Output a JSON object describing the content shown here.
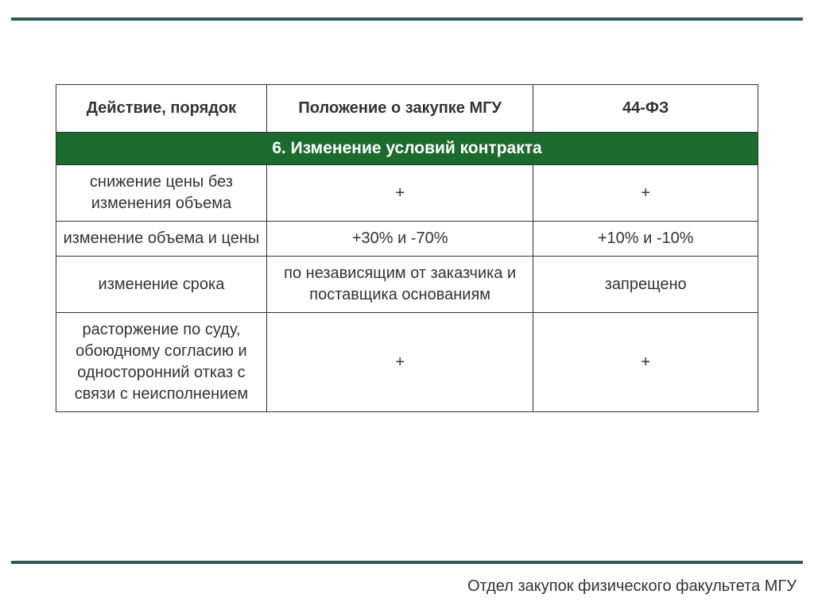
{
  "slide": {
    "rule_color": "#2e5b5a",
    "background_color": "#ffffff"
  },
  "footer": "Отдел закупок физического факультета МГУ",
  "table": {
    "columns": [
      "Действие, порядок",
      "Положение о закупке МГУ",
      "44-ФЗ"
    ],
    "section_title": "6. Изменение условий контракта",
    "section_bg": "#1b6b2e",
    "section_fg": "#ffffff",
    "border_color": "#333333",
    "cell_fontsize": 20,
    "header_fontsize": 20,
    "rows": [
      {
        "c1": "снижение цены без изменения объема",
        "c2": "+",
        "c3": "+"
      },
      {
        "c1": "изменение объема и цены",
        "c2": "+30% и -70%",
        "c3": "+10% и -10%"
      },
      {
        "c1": "изменение срока",
        "c2": "по независящим от заказчика и поставщика основаниям",
        "c3": "запрещено"
      },
      {
        "c1": "расторжение по суду, обоюдному согласию и односторонний отказ с связи с неисполнением",
        "c2": "+",
        "c3": "+"
      }
    ]
  }
}
